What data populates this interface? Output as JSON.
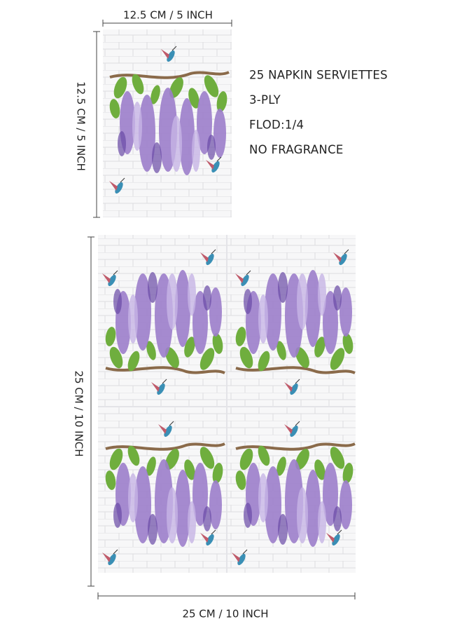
{
  "dimensions": {
    "small_width": "12.5 CM / 5 INCH",
    "small_height": "12.5 CM / 5 INCH",
    "large_height": "25 CM / 10 INCH",
    "large_width": "25 CM / 10 INCH"
  },
  "specs": [
    "25 NAPKIN SERVIETTES",
    "3-PLY",
    "FLOD:1/4",
    "NO FRAGRANCE"
  ]
}
